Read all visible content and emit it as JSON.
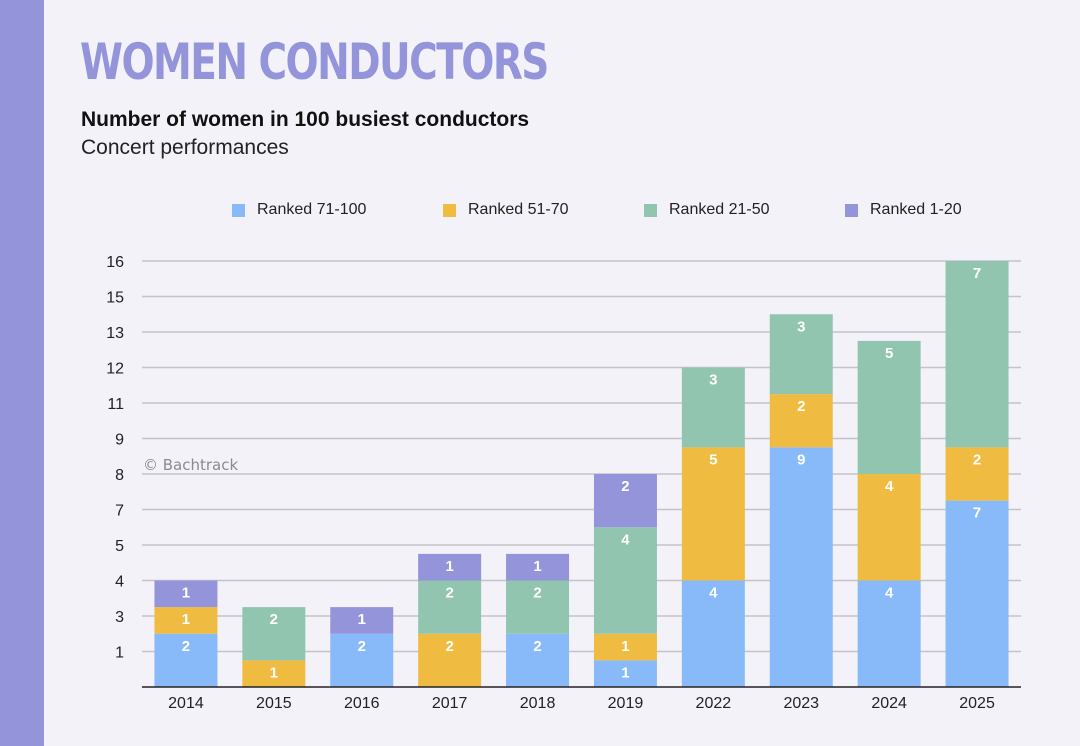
{
  "header": {
    "title": "WOMEN CONDUCTORS",
    "subtitle": "Number of women in 100 busiest conductors",
    "subsubtitle": "Concert performances"
  },
  "watermark": "© Bachtrack",
  "colors": {
    "accent": "#9494DB",
    "background": "#F3F2F9",
    "ranked_71_100": "#88B9F9",
    "ranked_51_70": "#EFBC41",
    "ranked_21_50": "#92C5B0",
    "ranked_1_20": "#9494DB"
  },
  "chart_data": {
    "type": "bar",
    "stacked": true,
    "title": "Number of women in 100 busiest conductors",
    "subtitle": "Concert performances",
    "xlabel": "",
    "ylabel": "",
    "ylim": [
      0,
      16
    ],
    "y_ticks": [
      {
        "value": 1.333,
        "label": "1"
      },
      {
        "value": 2.667,
        "label": "3"
      },
      {
        "value": 4,
        "label": "4"
      },
      {
        "value": 5.333,
        "label": "5"
      },
      {
        "value": 6.667,
        "label": "7"
      },
      {
        "value": 8,
        "label": "8"
      },
      {
        "value": 9.333,
        "label": "9"
      },
      {
        "value": 10.667,
        "label": "11"
      },
      {
        "value": 12,
        "label": "12"
      },
      {
        "value": 13.333,
        "label": "13"
      },
      {
        "value": 14.667,
        "label": "15"
      },
      {
        "value": 16,
        "label": "16"
      }
    ],
    "grid": true,
    "legend_position": "top",
    "categories": [
      "2014",
      "2015",
      "2016",
      "2017",
      "2018",
      "2019",
      "2022",
      "2023",
      "2024",
      "2025"
    ],
    "series": [
      {
        "name": "Ranked 71-100",
        "color": "#88B9F9",
        "values": [
          2,
          0,
          2,
          0,
          2,
          1,
          4,
          9,
          4,
          7
        ]
      },
      {
        "name": "Ranked 51-70",
        "color": "#EFBC41",
        "values": [
          1,
          1,
          0,
          2,
          0,
          1,
          5,
          2,
          4,
          2
        ]
      },
      {
        "name": "Ranked 21-50",
        "color": "#92C5B0",
        "values": [
          0,
          2,
          0,
          2,
          2,
          4,
          3,
          3,
          5,
          7
        ]
      },
      {
        "name": "Ranked 1-20",
        "color": "#9494DB",
        "values": [
          1,
          0,
          1,
          1,
          1,
          2,
          0,
          0,
          0,
          0
        ]
      }
    ]
  }
}
